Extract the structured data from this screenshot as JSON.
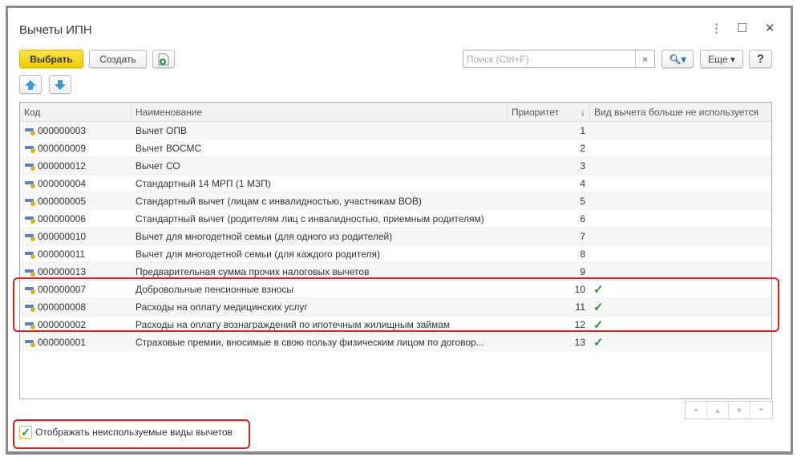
{
  "window": {
    "title": "Вычеты ИПН",
    "menu_icon": "⋮",
    "maximize_icon": "☐",
    "close_icon": "✕"
  },
  "toolbar": {
    "select": "Выбрать",
    "create": "Создать",
    "search_placeholder": "Поиск (Ctrl+F)",
    "clear": "×",
    "search_icon": "🔍",
    "more": "Еще ▾",
    "help": "?"
  },
  "table": {
    "columns": [
      "Код",
      "Наименование",
      "Приоритет",
      "Вид вычета больше не используется"
    ],
    "sort_indicator": "↓",
    "rows": [
      {
        "code": "000000003",
        "name": "Вычет ОПВ",
        "priority": "1",
        "unused": ""
      },
      {
        "code": "000000009",
        "name": "Вычет ВОСМС",
        "priority": "2",
        "unused": ""
      },
      {
        "code": "000000012",
        "name": "Вычет СО",
        "priority": "3",
        "unused": ""
      },
      {
        "code": "000000004",
        "name": "Стандартный 14 МРП (1 МЗП)",
        "priority": "4",
        "unused": ""
      },
      {
        "code": "000000005",
        "name": "Стандартный вычет (лицам с инвалидностью, участникам ВОВ)",
        "priority": "5",
        "unused": ""
      },
      {
        "code": "000000006",
        "name": "Стандартный вычет (родителям лиц с инвалидностью, приемным родителям)",
        "priority": "6",
        "unused": ""
      },
      {
        "code": "000000010",
        "name": "Вычет для многодетной семьи (для одного из родителей)",
        "priority": "7",
        "unused": ""
      },
      {
        "code": "000000011",
        "name": "Вычет для многодетной семьи (для каждого родителя)",
        "priority": "8",
        "unused": ""
      },
      {
        "code": "000000013",
        "name": "Предварительная сумма прочих налоговых вычетов",
        "priority": "9",
        "unused": ""
      },
      {
        "code": "000000007",
        "name": "Добровольные пенсионные взносы",
        "priority": "10",
        "unused": "✓"
      },
      {
        "code": "000000008",
        "name": "Расходы на оплату медицинских услуг",
        "priority": "11",
        "unused": "✓"
      },
      {
        "code": "000000002",
        "name": "Расходы на оплату вознаграждений по ипотечным жилищным займам",
        "priority": "12",
        "unused": "✓"
      },
      {
        "code": "000000001",
        "name": "Страховые премии, вносимые в свою пользу физическим лицом по договор...",
        "priority": "13",
        "unused": "✓"
      }
    ]
  },
  "nav": [
    "⏶",
    "▲",
    "▼",
    "⏷"
  ],
  "show_unused": {
    "label": "Отображать неиспользуемые виды вычетов",
    "checked": true,
    "mark": "✓"
  },
  "colors": {
    "highlight": "#e02020",
    "check": "#1a9a3a",
    "primary_button": "#f0cc00"
  }
}
